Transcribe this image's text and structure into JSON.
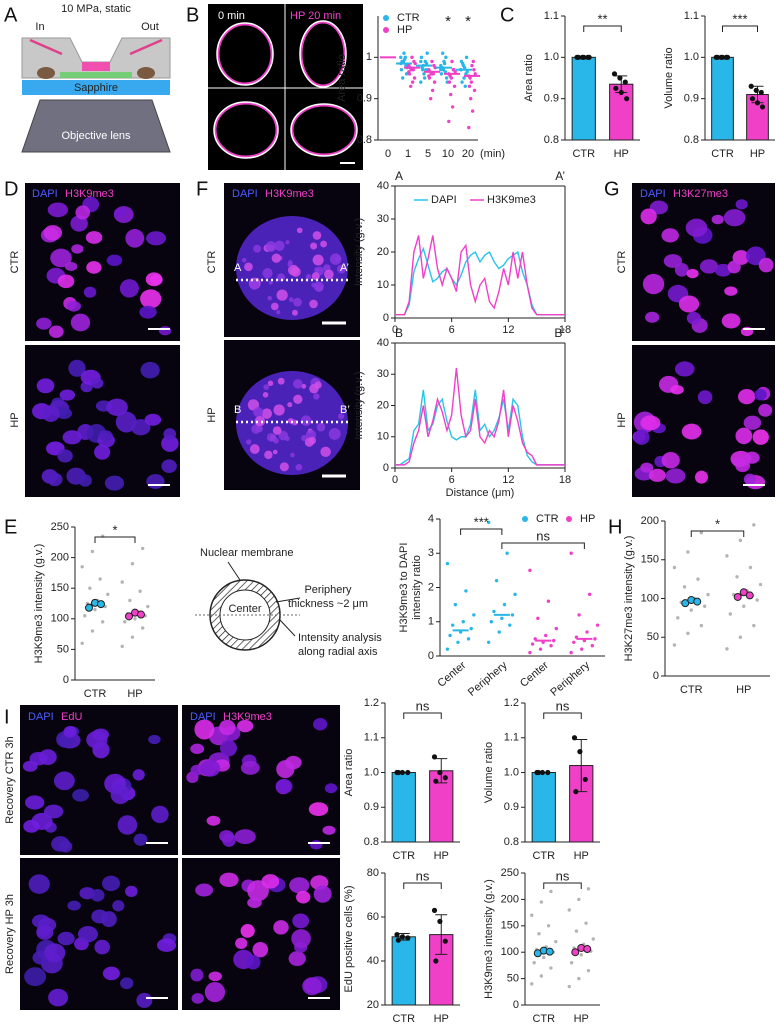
{
  "panel_labels": [
    "A",
    "B",
    "C",
    "D",
    "E",
    "F",
    "G",
    "H",
    "I"
  ],
  "panel_a": {
    "title": "10 MPa, static",
    "inlet": "In",
    "outlet": "Out",
    "window": "Sapphire",
    "lens": "Objective lens"
  },
  "panel_b_images": {
    "before": "0 min",
    "after": "HP 20 min"
  },
  "images": {
    "D": {
      "stains": [
        "DAPI",
        "H3K9me3"
      ],
      "rows": [
        "CTR",
        "HP"
      ]
    },
    "F": {
      "stains": [
        "DAPI",
        "H3K9me3"
      ],
      "rows": [
        "CTR",
        "HP"
      ],
      "line_ends": [
        [
          "A",
          "A’"
        ],
        [
          "B",
          "B’"
        ]
      ]
    },
    "G": {
      "stains": [
        "DAPI",
        "H3K27me3"
      ],
      "rows": [
        "CTR",
        "HP"
      ]
    },
    "I": {
      "left_stains": [
        "DAPI",
        "EdU"
      ],
      "right_stains": [
        "DAPI",
        "H3K9me3"
      ],
      "rows": [
        "Recovery CTR 3h",
        "Recovery HP 3h"
      ]
    }
  },
  "diagram": {
    "membrane": "Nuclear membrane",
    "periphery": [
      "Periphery",
      "thickness ~2 μm"
    ],
    "center": "Center",
    "analysis": [
      "Intensity analysis",
      "along radial axis"
    ]
  },
  "chart_data": [
    {
      "type": "strip",
      "ylabel": "Area ratio",
      "xlabel": "(min)",
      "categories": [
        "0",
        "1",
        "5",
        "10",
        "20"
      ],
      "ylim": [
        0.8,
        1.1
      ],
      "yticks": [
        0.8,
        0.9,
        1
      ],
      "legend": "upper left",
      "series": [
        {
          "name": "CTR",
          "color": "#29b6e8",
          "values": [
            null,
            0.985,
            0.98,
            0.975,
            0.97
          ],
          "points": [
            null,
            [
              1.0,
              0.99,
              0.98,
              0.97,
              1.01,
              0.96,
              0.99,
              0.995,
              0.975,
              0.95,
              1.0,
              0.985
            ],
            [
              0.99,
              0.98,
              0.97,
              1.0,
              0.96,
              0.985,
              0.975,
              0.95,
              1.01,
              0.97,
              0.99,
              0.94
            ],
            [
              0.98,
              0.97,
              1.0,
              0.96,
              0.99,
              0.95,
              0.975,
              0.985,
              0.94,
              1.01,
              0.965,
              0.97
            ],
            [
              0.97,
              0.98,
              0.96,
              0.99,
              0.95,
              1.0,
              0.94,
              0.975,
              0.965,
              0.985,
              0.93,
              0.97
            ]
          ]
        },
        {
          "name": "HP",
          "color": "#f040c8",
          "values": [
            1,
            0.975,
            0.965,
            0.96,
            0.955
          ],
          "points": [
            null,
            [
              0.98,
              0.97,
              0.99,
              0.96,
              1.0,
              0.95,
              0.975,
              0.94,
              0.985,
              0.93,
              0.97,
              0.965
            ],
            [
              0.97,
              0.96,
              0.98,
              0.95,
              0.99,
              0.94,
              0.965,
              0.92,
              0.975,
              0.9,
              0.96,
              0.955
            ],
            [
              0.96,
              0.95,
              0.97,
              0.94,
              0.99,
              0.93,
              0.955,
              0.88,
              0.965,
              0.91,
              0.97,
              0.845
            ],
            [
              0.955,
              0.94,
              0.97,
              0.93,
              0.98,
              0.92,
              0.95,
              0.87,
              0.96,
              0.9,
              0.99,
              0.83
            ]
          ]
        }
      ],
      "annotations": [
        {
          "text": "*",
          "at": 3
        },
        {
          "text": "*",
          "at": 4
        }
      ]
    },
    {
      "type": "bar",
      "ylabel": "Area ratio",
      "categories": [
        "CTR",
        "HP"
      ],
      "colors": [
        "#29b6e8",
        "#f040c8"
      ],
      "values": [
        1,
        0.935
      ],
      "errors": [
        0,
        0.02
      ],
      "points": [
        [
          1,
          1,
          1,
          1,
          1,
          1
        ],
        [
          0.96,
          0.95,
          0.94,
          0.925,
          0.915,
          0.9
        ]
      ],
      "ylim": [
        0.8,
        1.1
      ],
      "yticks": [
        0.8,
        0.9,
        {
          "value": 1,
          "label": "1.0"
        },
        1.1
      ],
      "annotations": [
        {
          "text": "**",
          "between": [
            0,
            1
          ]
        }
      ]
    },
    {
      "type": "bar",
      "ylabel": "Volume ratio",
      "categories": [
        "CTR",
        "HP"
      ],
      "colors": [
        "#29b6e8",
        "#f040c8"
      ],
      "values": [
        1,
        0.91
      ],
      "errors": [
        0,
        0.02
      ],
      "points": [
        [
          1,
          1,
          1,
          1,
          1,
          1
        ],
        [
          0.93,
          0.92,
          0.915,
          0.9,
          0.89,
          0.88
        ]
      ],
      "ylim": [
        0.8,
        1.1
      ],
      "yticks": [
        0.8,
        0.9,
        {
          "value": 1,
          "label": "1.0"
        },
        1.1
      ],
      "annotations": [
        {
          "text": "***",
          "between": [
            0,
            1
          ]
        }
      ]
    },
    {
      "type": "line",
      "end_labels": [
        "A",
        "A’"
      ],
      "ylabel": "Intensity (g.v.)",
      "legend": "upper center",
      "xlim": [
        0,
        18
      ],
      "xticks": [
        0,
        6,
        12,
        18
      ],
      "ylim": [
        0,
        40
      ],
      "yticks": [
        0,
        10,
        20,
        30,
        40
      ],
      "x": [
        0,
        0.5,
        1,
        1.5,
        2,
        2.5,
        3,
        3.5,
        4,
        4.5,
        5,
        5.5,
        6,
        6.5,
        7,
        7.5,
        8,
        8.5,
        9,
        9.5,
        10,
        10.5,
        11,
        11.5,
        12,
        12.5,
        13,
        13.5,
        14,
        14.5,
        15,
        15.5,
        16,
        16.5,
        17,
        17.5,
        18
      ],
      "series": [
        {
          "name": "DAPI",
          "color": "#29c4e8",
          "values": [
            1,
            1,
            1,
            4,
            14,
            18,
            21,
            16,
            11,
            12,
            14,
            15,
            12,
            10,
            13,
            17,
            19,
            20,
            17,
            19,
            20,
            17,
            15,
            16,
            18,
            19,
            20,
            14,
            10,
            4,
            1,
            1,
            1,
            1,
            1,
            1,
            1
          ]
        },
        {
          "name": "H3K9me3",
          "color": "#f040c8",
          "values": [
            1,
            1,
            1,
            5,
            20,
            25,
            12,
            18,
            25,
            15,
            10,
            15,
            12,
            8,
            20,
            22,
            10,
            5,
            10,
            12,
            5,
            3,
            8,
            15,
            10,
            20,
            12,
            20,
            10,
            3,
            1,
            1,
            1,
            1,
            1,
            1,
            1
          ]
        }
      ]
    },
    {
      "type": "line",
      "end_labels": [
        "B",
        "B’"
      ],
      "ylabel": "Intensity (g.v.)",
      "xlabel": "Distance (μm)",
      "xlim": [
        0,
        18
      ],
      "xticks": [
        0,
        6,
        12,
        18
      ],
      "ylim": [
        0,
        40
      ],
      "yticks": [
        0,
        10,
        20,
        30,
        40
      ],
      "x": [
        0,
        0.5,
        1,
        1.5,
        2,
        2.5,
        3,
        3.5,
        4,
        4.5,
        5,
        5.5,
        6,
        6.5,
        7,
        7.5,
        8,
        8.5,
        9,
        9.5,
        10,
        10.5,
        11,
        11.5,
        12,
        12.5,
        13,
        13.5,
        14,
        14.5,
        15,
        15.5,
        16,
        16.5,
        17,
        17.5,
        18
      ],
      "series": [
        {
          "color": "#29c4e8",
          "values": [
            1,
            1,
            2,
            3,
            12,
            14,
            25,
            12,
            14,
            20,
            22,
            15,
            10,
            9,
            10,
            10,
            14,
            25,
            12,
            14,
            10,
            12,
            16,
            22,
            12,
            22,
            20,
            10,
            4,
            2,
            1,
            1,
            1,
            1,
            1,
            1,
            1
          ]
        },
        {
          "color": "#f040c8",
          "values": [
            1,
            1,
            1,
            2,
            8,
            12,
            20,
            10,
            15,
            22,
            18,
            12,
            17,
            32,
            17,
            10,
            12,
            22,
            10,
            8,
            12,
            10,
            15,
            25,
            10,
            20,
            15,
            8,
            5,
            4,
            1,
            1,
            1,
            1,
            1,
            1,
            1
          ]
        }
      ]
    },
    {
      "type": "strip",
      "ylabel": "H3K9me3 intensity (g.v.)",
      "categories": [
        "CTR",
        "HP"
      ],
      "ylim": [
        0,
        250
      ],
      "yticks": [
        0,
        50,
        100,
        150,
        200,
        250
      ],
      "replicate_colors": [
        "#29b6e8",
        "#f040c8"
      ],
      "series": [
        {
          "color": "#b4b4b4",
          "values": [
            123,
            107
          ],
          "points": [
            [
              60,
              80,
              95,
              105,
              115,
              120,
              125,
              130,
              140,
              150,
              165,
              185,
              210,
              235
            ],
            [
              55,
              70,
              85,
              95,
              100,
              105,
              108,
              112,
              120,
              130,
              145,
              160,
              190,
              215
            ]
          ],
          "replicates": [
            [
              118,
              126,
              124
            ],
            [
              104,
              110,
              107
            ]
          ]
        }
      ],
      "annotations": [
        {
          "text": "*",
          "between": [
            0,
            1
          ]
        }
      ]
    },
    {
      "type": "strip",
      "ylabel": [
        "H3K9me3 to DAPI",
        "intensity ratio"
      ],
      "categories": [
        "Center",
        "Periphery",
        "Center",
        "Periphery"
      ],
      "ylim": [
        0,
        4
      ],
      "yticks": [
        0,
        1,
        2,
        3,
        4
      ],
      "legend": "upper right",
      "series": [
        {
          "name": "CTR",
          "color": "#29b6e8",
          "values": [
            0.75,
            1.2,
            null,
            null
          ],
          "points": [
            [
              0.2,
              0.4,
              0.5,
              0.6,
              0.7,
              0.8,
              0.9,
              1.0,
              1.2,
              1.5,
              1.9,
              2.7
            ],
            [
              0.4,
              0.7,
              0.9,
              1.0,
              1.1,
              1.2,
              1.3,
              1.5,
              1.8,
              2.2,
              3.0,
              3.9
            ],
            null,
            null
          ]
        },
        {
          "name": "HP",
          "color": "#f040c8",
          "values": [
            null,
            null,
            0.45,
            0.5
          ],
          "points": [
            null,
            null,
            [
              0.1,
              0.2,
              0.3,
              0.35,
              0.4,
              0.45,
              0.5,
              0.6,
              0.8,
              1.1,
              1.6,
              2.5
            ],
            [
              0.1,
              0.2,
              0.3,
              0.4,
              0.45,
              0.5,
              0.55,
              0.7,
              0.9,
              1.2,
              1.8,
              3.0
            ]
          ]
        }
      ],
      "annotations": [
        {
          "text": "***",
          "between": [
            0,
            1
          ]
        },
        {
          "text": "ns",
          "between": [
            1,
            3
          ]
        }
      ]
    },
    {
      "type": "strip",
      "ylabel": "H3K27me3 intensity (g.v.)",
      "categories": [
        "CTR",
        "HP"
      ],
      "ylim": [
        0,
        200
      ],
      "yticks": [
        0,
        50,
        100,
        150,
        200
      ],
      "replicate_colors": [
        "#29b6e8",
        "#f040c8"
      ],
      "series": [
        {
          "color": "#b4b4b4",
          "values": [
            96,
            105
          ],
          "points": [
            [
              40,
              55,
              65,
              75,
              85,
              90,
              95,
              100,
              105,
              115,
              125,
              140,
              160,
              185
            ],
            [
              35,
              50,
              65,
              80,
              90,
              98,
              105,
              110,
              118,
              128,
              140,
              155,
              175,
              195
            ]
          ],
          "replicates": [
            [
              94,
              98,
              96
            ],
            [
              102,
              108,
              104
            ]
          ]
        }
      ],
      "annotations": [
        {
          "text": "*",
          "between": [
            0,
            1
          ]
        }
      ]
    },
    {
      "type": "bar",
      "ylabel": "Area ratio",
      "categories": [
        "CTR",
        "HP"
      ],
      "colors": [
        "#29b6e8",
        "#f040c8"
      ],
      "values": [
        1,
        1.005
      ],
      "errors": [
        0,
        0.035
      ],
      "points": [
        [
          1,
          1,
          1,
          1
        ],
        [
          1.045,
          1.0,
          0.985,
          0.975
        ]
      ],
      "ylim": [
        0.8,
        1.2
      ],
      "yticks": [
        0.8,
        0.9,
        {
          "value": 1,
          "label": "1.0"
        },
        1.1,
        1.2
      ],
      "annotations": [
        {
          "text": "ns",
          "between": [
            0,
            1
          ]
        }
      ]
    },
    {
      "type": "bar",
      "ylabel": "Volume ratio",
      "categories": [
        "CTR",
        "HP"
      ],
      "colors": [
        "#29b6e8",
        "#f040c8"
      ],
      "values": [
        1,
        1.02
      ],
      "errors": [
        0,
        0.075
      ],
      "points": [
        [
          1,
          1,
          1,
          1
        ],
        [
          1.1,
          1.06,
          0.98,
          0.945
        ]
      ],
      "ylim": [
        0.8,
        1.2
      ],
      "yticks": [
        0.8,
        0.9,
        {
          "value": 1,
          "label": "1.0"
        },
        1.1,
        1.2
      ],
      "annotations": [
        {
          "text": "ns",
          "between": [
            0,
            1
          ]
        }
      ]
    },
    {
      "type": "bar",
      "ylabel": "EdU positive cells (%)",
      "categories": [
        "CTR",
        "HP"
      ],
      "colors": [
        "#29b6e8",
        "#f040c8"
      ],
      "values": [
        51,
        52
      ],
      "errors": [
        1.5,
        9
      ],
      "points": [
        [
          52,
          51,
          50.5,
          49.5
        ],
        [
          63,
          58,
          49,
          40
        ]
      ],
      "ylim": [
        20,
        80
      ],
      "yticks": [
        20,
        40,
        60,
        80
      ],
      "annotations": [
        {
          "text": "ns",
          "between": [
            0,
            1
          ]
        }
      ]
    },
    {
      "type": "strip",
      "ylabel": "H3K9me3 intensity (g.v.)",
      "categories": [
        "CTR",
        "HP"
      ],
      "ylim": [
        0,
        250
      ],
      "yticks": [
        0,
        50,
        100,
        150,
        200,
        250
      ],
      "replicate_colors": [
        "#29b6e8",
        "#f040c8"
      ],
      "series": [
        {
          "color": "#b4b4b4",
          "values": [
            101,
            104
          ],
          "points": [
            [
              40,
              55,
              70,
              80,
              90,
              100,
              105,
              110,
              120,
              135,
              150,
              170,
              195,
              215
            ],
            [
              35,
              50,
              65,
              80,
              95,
              102,
              108,
              115,
              125,
              140,
              155,
              180,
              200,
              220
            ]
          ],
          "replicates": [
            [
              98,
              103,
              101
            ],
            [
              100,
              108,
              106
            ]
          ]
        }
      ],
      "annotations": [
        {
          "text": "ns",
          "between": [
            0,
            1
          ]
        }
      ]
    }
  ]
}
